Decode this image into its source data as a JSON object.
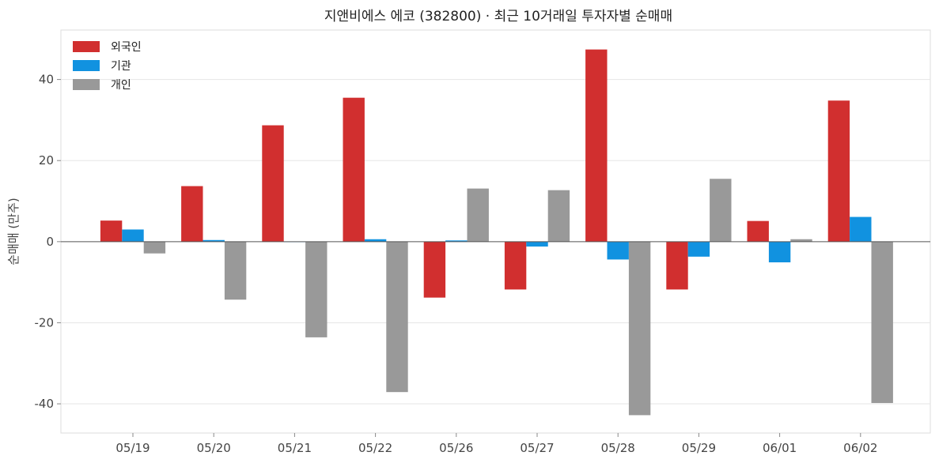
{
  "chart_data": {
    "type": "bar",
    "title": "지앤비에스 에코 (382800) · 최근 10거래일 투자자별 순매매",
    "xlabel": "",
    "ylabel": "순매매 (만주)",
    "categories": [
      "05/19",
      "05/20",
      "05/21",
      "05/22",
      "05/26",
      "05/27",
      "05/28",
      "05/29",
      "06/01",
      "06/02"
    ],
    "series": [
      {
        "name": "외국인",
        "color": "#d12f2f",
        "values": [
          5.2,
          13.7,
          28.7,
          35.5,
          -13.8,
          -11.8,
          47.4,
          -11.8,
          5.1,
          34.8
        ]
      },
      {
        "name": "기관",
        "color": "#1192e0",
        "values": [
          3.0,
          0.4,
          0.0,
          0.6,
          0.3,
          -1.2,
          -4.4,
          -3.7,
          -5.1,
          6.1
        ]
      },
      {
        "name": "개인",
        "color": "#999999",
        "values": [
          -2.9,
          -14.3,
          -23.6,
          -37.1,
          13.1,
          12.7,
          -42.8,
          15.5,
          0.6,
          -39.8
        ]
      }
    ],
    "ylim": [
      -47.2,
      52.2
    ],
    "yticks": [
      -40,
      -20,
      0,
      20,
      40
    ],
    "grid": true,
    "legend_position": "top-left"
  }
}
